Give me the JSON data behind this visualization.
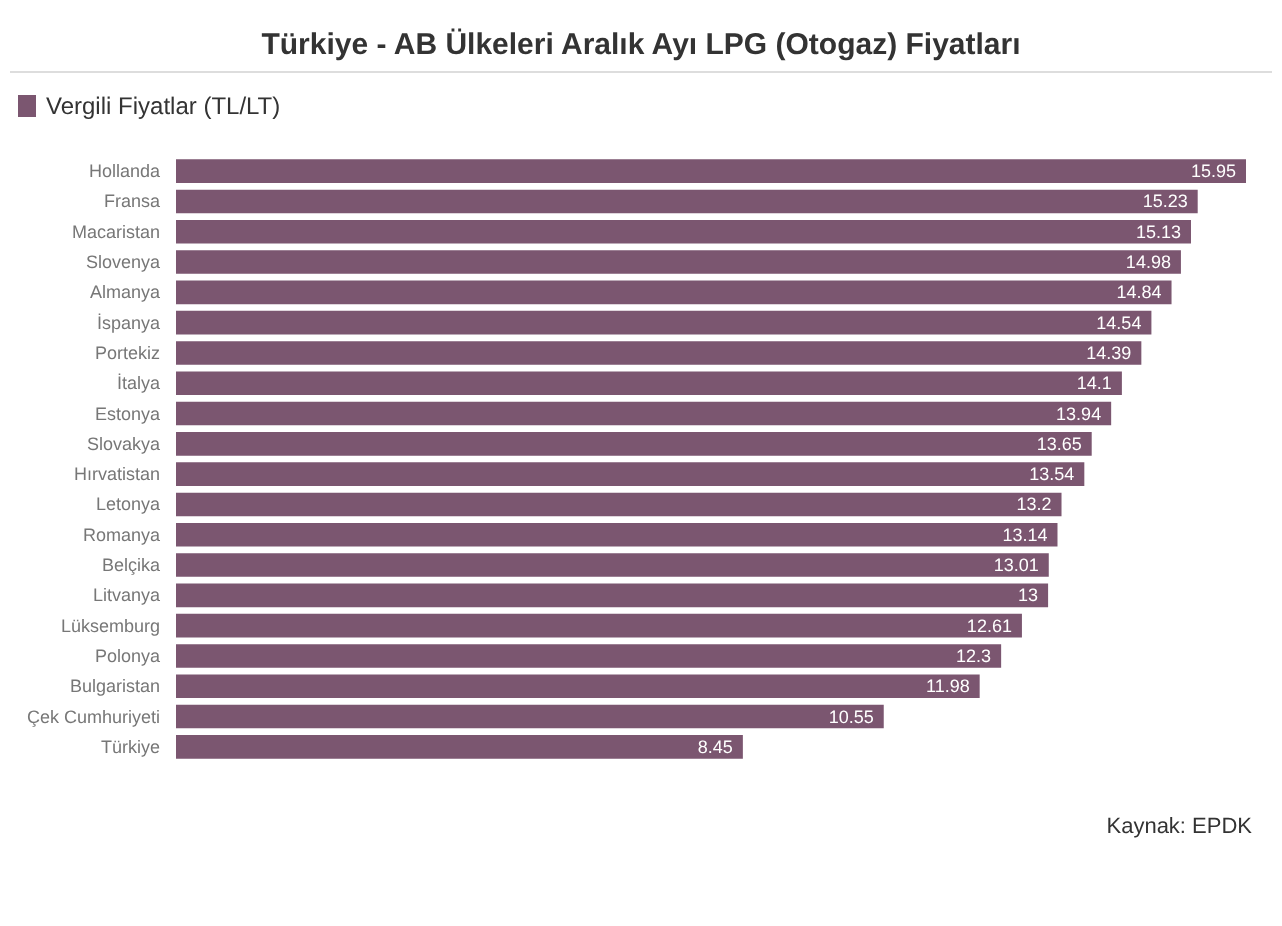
{
  "chart_data": {
    "type": "bar",
    "orientation": "horizontal",
    "title": "Türkiye - AB Ülkeleri Aralık Ayı LPG (Otogaz) Fiyatları",
    "categories": [
      "Hollanda",
      "Fransa",
      "Macaristan",
      "Slovenya",
      "Almanya",
      "İspanya",
      "Portekiz",
      "İtalya",
      "Estonya",
      "Slovakya",
      "Hırvatistan",
      "Letonya",
      "Romanya",
      "Belçika",
      "Litvanya",
      "Lüksemburg",
      "Polonya",
      "Bulgaristan",
      "Çek Cumhuriyeti",
      "Türkiye"
    ],
    "series": [
      {
        "name": "Vergili Fiyatlar (TL/LT)",
        "color": "#7b5670",
        "values": [
          15.95,
          15.23,
          15.13,
          14.98,
          14.84,
          14.54,
          14.39,
          14.1,
          13.94,
          13.65,
          13.54,
          13.2,
          13.14,
          13.01,
          13,
          12.61,
          12.3,
          11.98,
          10.55,
          8.45
        ]
      }
    ],
    "data_labels": true,
    "legend": "top left",
    "grid": false,
    "annotations": [
      "Kaynak: EPDK"
    ]
  }
}
